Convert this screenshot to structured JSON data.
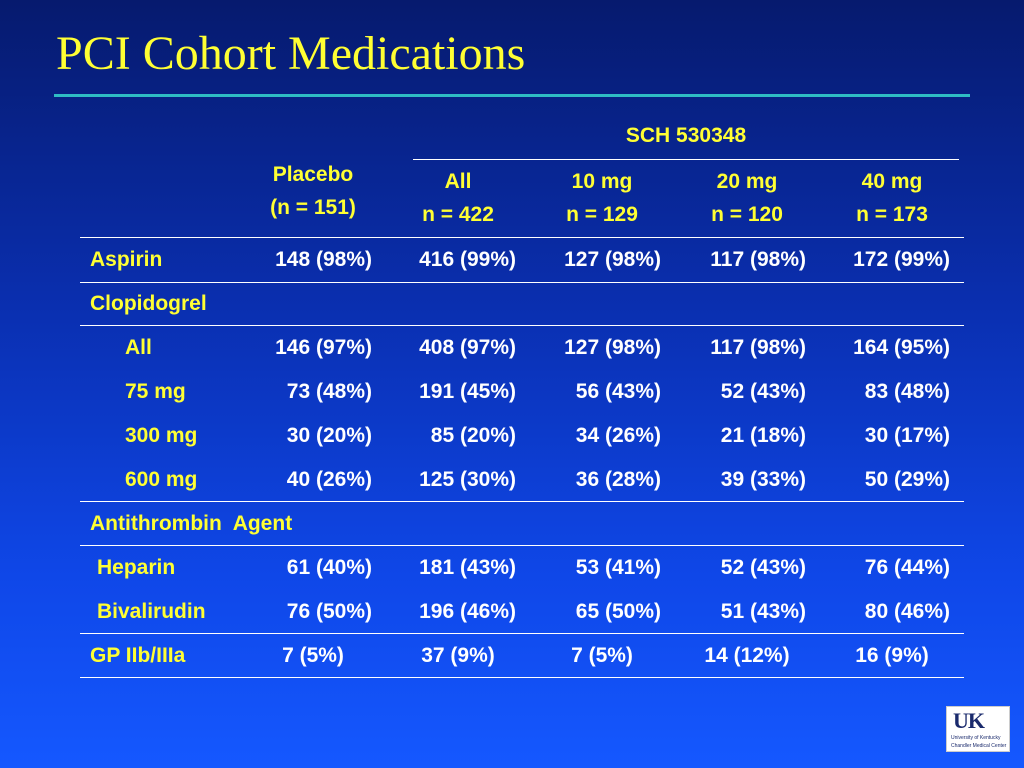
{
  "slide": {
    "title": "PCI Cohort Medications"
  },
  "table": {
    "group_header": "SCH 530348",
    "columns": [
      {
        "line1": "Placebo",
        "line2": "(n = 151)"
      },
      {
        "line1": "All",
        "line2": "n = 422"
      },
      {
        "line1": "10 mg",
        "line2": "n = 129"
      },
      {
        "line1": "20 mg",
        "line2": "n = 120"
      },
      {
        "line1": "40 mg",
        "line2": "n = 173"
      }
    ],
    "rows": [
      {
        "label": "Aspirin",
        "values": [
          "148 (98%)",
          "416 (99%)",
          "127 (98%)",
          "117 (98%)",
          "172 (99%)"
        ]
      },
      {
        "label": "Clopidogrel",
        "values": [
          "",
          "",
          "",
          "",
          ""
        ]
      },
      {
        "label": "All",
        "values": [
          "146 (97%)",
          "408 (97%)",
          "127 (98%)",
          "117 (98%)",
          "164 (95%)"
        ]
      },
      {
        "label": "75 mg",
        "values": [
          "73 (48%)",
          "191 (45%)",
          "56 (43%)",
          "52 (43%)",
          "83 (48%)"
        ]
      },
      {
        "label": "300 mg",
        "values": [
          "30 (20%)",
          "85 (20%)",
          "34 (26%)",
          "21 (18%)",
          "30 (17%)"
        ]
      },
      {
        "label": "600 mg",
        "values": [
          "40 (26%)",
          "125 (30%)",
          "36 (28%)",
          "39 (33%)",
          "50 (29%)"
        ]
      },
      {
        "label": "Antithrombin  Agent",
        "values": [
          "",
          "",
          "",
          "",
          ""
        ]
      },
      {
        "label": "Heparin",
        "values": [
          "61 (40%)",
          "181 (43%)",
          "53 (41%)",
          "52 (43%)",
          "76 (44%)"
        ]
      },
      {
        "label": "Bivalirudin",
        "values": [
          "76 (50%)",
          "196 (46%)",
          "65 (50%)",
          "51 (43%)",
          "80 (46%)"
        ]
      },
      {
        "label": "GP IIb/IIIa",
        "values": [
          "7 (5%)",
          "37 (9%)",
          "7 (5%)",
          "14 (12%)",
          "16 (9%)"
        ]
      }
    ]
  },
  "logo": {
    "mark": "UK",
    "line1": "University of Kentucky",
    "line2": "Chandler Medical Center"
  }
}
